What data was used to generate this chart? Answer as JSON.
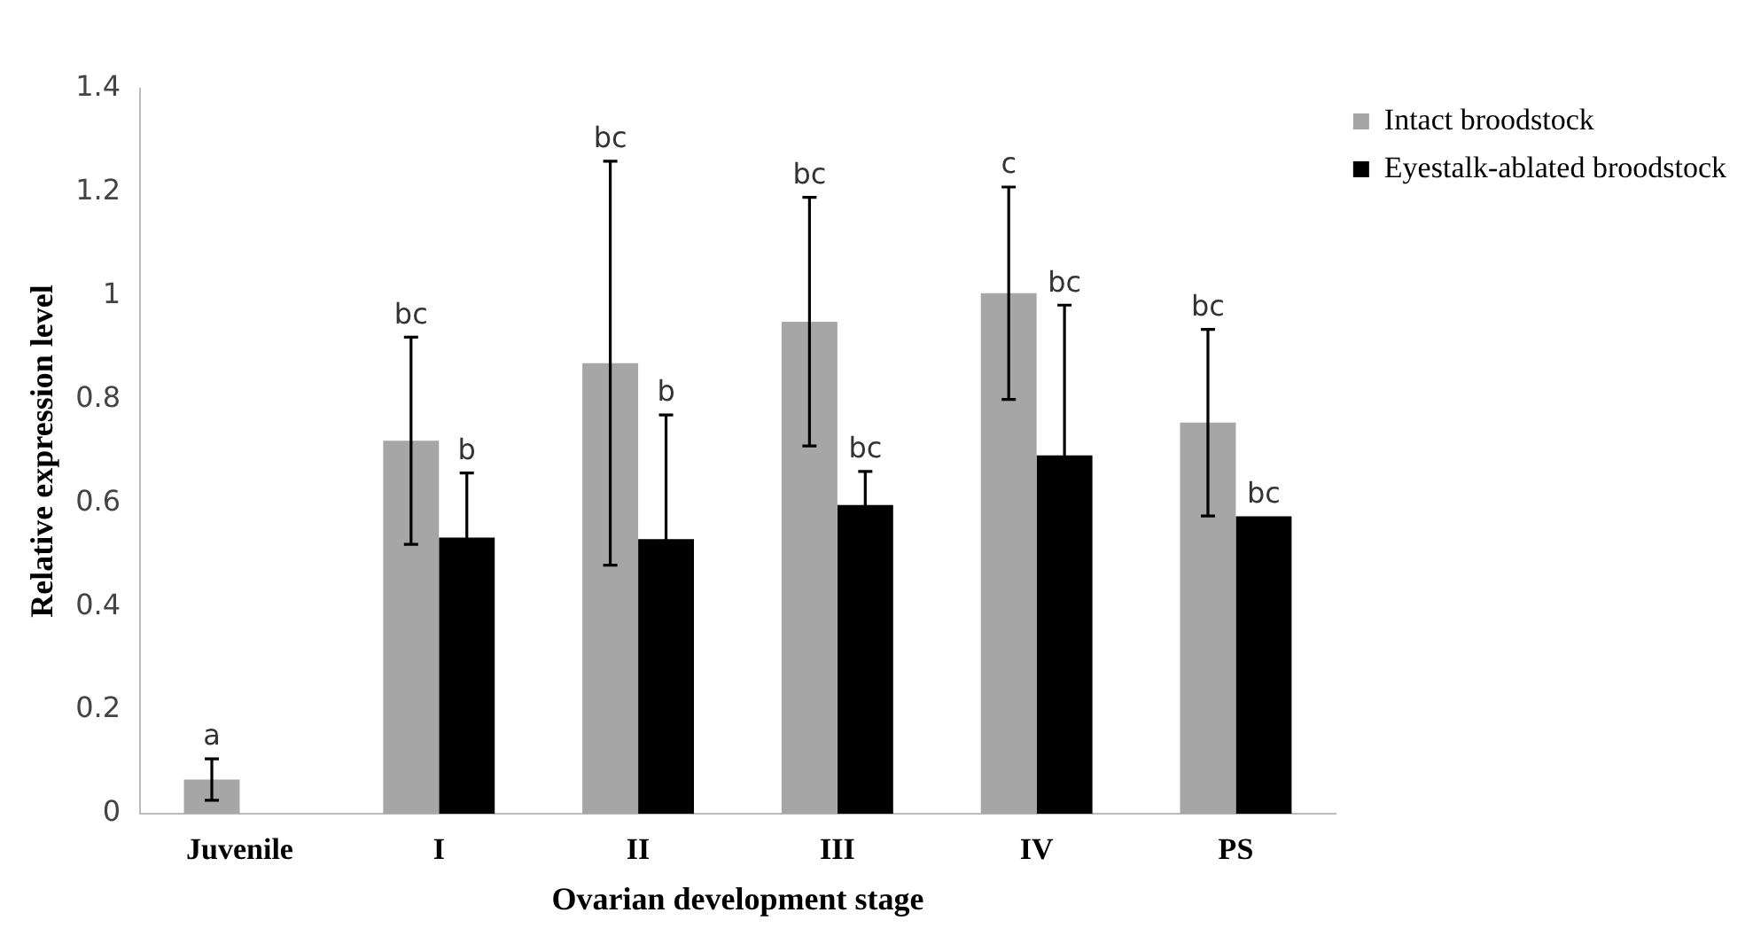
{
  "chart_data": {
    "type": "bar",
    "xlabel": "Ovarian development stage",
    "ylabel": "Relative expression level",
    "categories": [
      "Juvenile",
      "I",
      "II",
      "III",
      "IV",
      "PS"
    ],
    "series": [
      {
        "name": "Intact broodstock",
        "color": "#a6a6a6",
        "values": [
          0.066,
          0.72,
          0.87,
          0.95,
          1.005,
          0.755
        ],
        "errors": [
          0.04,
          0.2,
          0.39,
          0.24,
          0.205,
          0.18
        ]
      },
      {
        "name": "Eyestalk-ablated broodstock",
        "color": "#000000",
        "values": [
          null,
          0.533,
          0.53,
          0.596,
          0.692,
          0.574
        ],
        "errors": [
          null,
          0.125,
          0.24,
          0.065,
          0.29,
          null
        ]
      }
    ],
    "annotations": [
      "a",
      "bc",
      "b",
      "bc",
      "b",
      "bc",
      "bc",
      "c",
      "bc",
      "bc",
      "bc"
    ],
    "ylim": [
      0,
      1.4
    ],
    "yticks": [
      0,
      0.2,
      0.4,
      0.6,
      0.8,
      1,
      1.2,
      1.4
    ],
    "grid": false,
    "legend": "top right"
  }
}
